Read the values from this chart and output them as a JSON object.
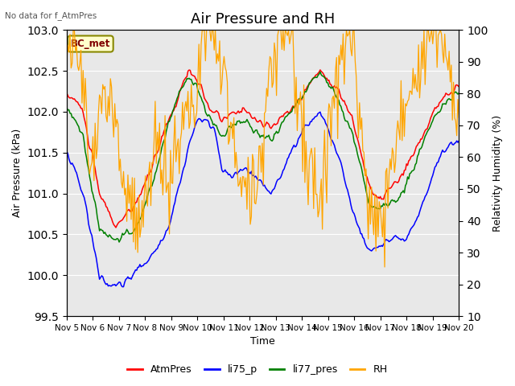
{
  "title": "Air Pressure and RH",
  "top_left_text": "No data for f_AtmPres",
  "box_label": "BC_met",
  "xlabel": "Time",
  "ylabel_left": "Air Pressure (kPa)",
  "ylabel_right": "Relativity Humidity (%)",
  "ylim_left": [
    99.5,
    103.0
  ],
  "ylim_right": [
    10,
    100
  ],
  "x_tick_labels": [
    "Nov 5",
    "Nov 6",
    "Nov 7",
    "Nov 8",
    "Nov 9",
    "Nov 10",
    "Nov 11",
    "Nov 12",
    "Nov 13",
    "Nov 14",
    "Nov 15",
    "Nov 16",
    "Nov 17",
    "Nov 18",
    "Nov 19",
    "Nov 20"
  ],
  "legend_entries": [
    "AtmPres",
    "li75_p",
    "li77_pres",
    "RH"
  ],
  "color_AtmPres": "red",
  "color_li75_p": "blue",
  "color_li77_pres": "green",
  "color_RH": "orange",
  "background_color": "#ffffff",
  "plot_bg_color": "#e8e8e8",
  "grid_color": "#ffffff",
  "title_fontsize": 13,
  "label_fontsize": 9,
  "tick_fontsize": 7.5
}
